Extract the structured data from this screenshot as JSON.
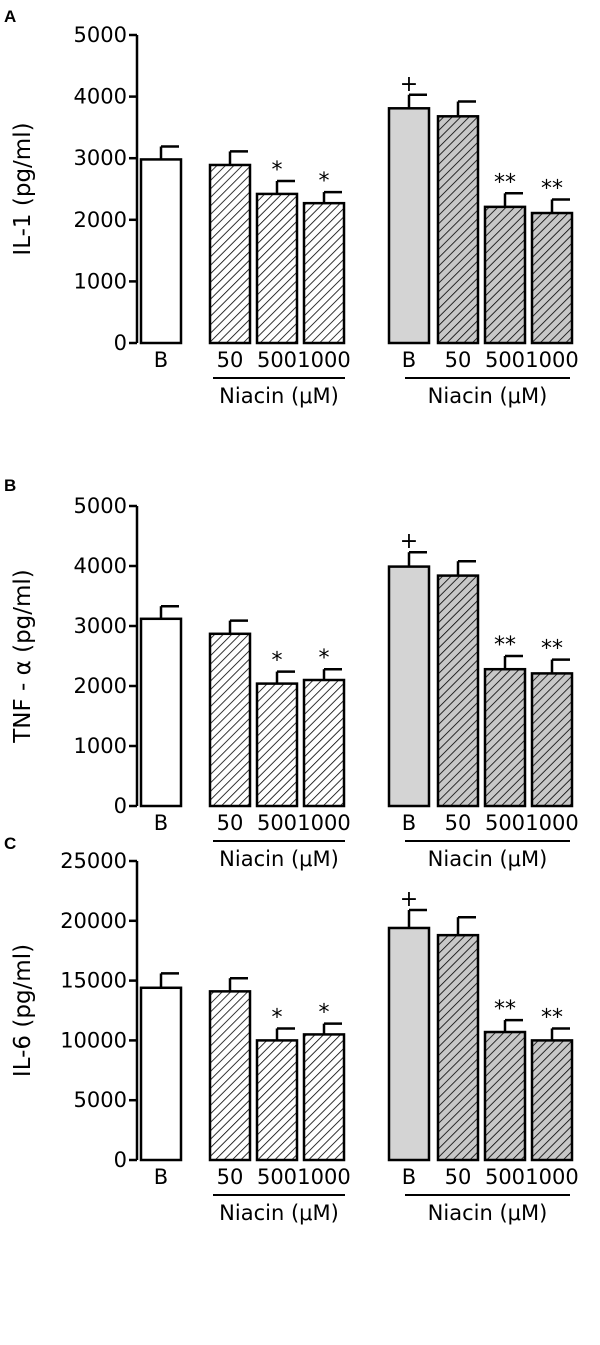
{
  "colors": {
    "control": "#ffffff",
    "lps": "#d4d4d4",
    "hatch_control": "#ffffff",
    "hatch_lps": "#c8c8c8",
    "ink": "#000000"
  },
  "chart_data": [
    {
      "type": "bar",
      "panel": "A",
      "ylabel": "IL-1 (pg/ml)",
      "ylim": [
        0,
        5000
      ],
      "yticks": [
        "0",
        "1000",
        "2000",
        "3000",
        "4000",
        "5000"
      ],
      "categories": [
        "B",
        "50",
        "500",
        "1000",
        "B",
        "50",
        "500",
        "1000"
      ],
      "groups": [
        "Niacin (μM)",
        "Niacin (μM)"
      ],
      "values": [
        2980,
        2890,
        2420,
        2270,
        3810,
        3680,
        2210,
        2110
      ],
      "errors": [
        210,
        220,
        210,
        180,
        220,
        240,
        220,
        220
      ],
      "fills": [
        "open",
        "hatch",
        "hatch",
        "hatch",
        "gray",
        "hatch_gray",
        "hatch_gray",
        "hatch_gray"
      ],
      "annotations": [
        "",
        "",
        "*",
        "*",
        "+",
        "",
        "**",
        "**"
      ]
    },
    {
      "type": "bar",
      "panel": "B",
      "ylabel": "TNF - α (pg/ml)",
      "ylim": [
        0,
        5000
      ],
      "yticks": [
        "0",
        "1000",
        "2000",
        "3000",
        "4000",
        "5000"
      ],
      "categories": [
        "B",
        "50",
        "500",
        "1000",
        "B",
        "50",
        "500",
        "1000"
      ],
      "groups": [
        "Niacin (μM)",
        "Niacin (μM)"
      ],
      "values": [
        3120,
        2870,
        2040,
        2100,
        3990,
        3840,
        2280,
        2210
      ],
      "errors": [
        210,
        220,
        200,
        180,
        240,
        240,
        220,
        230
      ],
      "fills": [
        "open",
        "hatch",
        "hatch",
        "hatch",
        "gray",
        "hatch_gray",
        "hatch_gray",
        "hatch_gray"
      ],
      "annotations": [
        "",
        "",
        "*",
        "*",
        "+",
        "",
        "**",
        "**"
      ]
    },
    {
      "type": "bar",
      "panel": "C",
      "ylabel": "IL-6 (pg/ml)",
      "ylim": [
        0,
        25000
      ],
      "yticks": [
        "0",
        "5000",
        "10000",
        "15000",
        "20000",
        "25000"
      ],
      "categories": [
        "B",
        "50",
        "500",
        "1000",
        "B",
        "50",
        "500",
        "1000"
      ],
      "groups": [
        "Niacin (μM)",
        "Niacin (μM)"
      ],
      "values": [
        14400,
        14100,
        10000,
        10500,
        19400,
        18800,
        10700,
        10000
      ],
      "errors": [
        1200,
        1100,
        1000,
        900,
        1500,
        1500,
        1000,
        1000
      ],
      "fills": [
        "open",
        "hatch",
        "hatch",
        "hatch",
        "gray",
        "hatch_gray",
        "hatch_gray",
        "hatch_gray"
      ],
      "annotations": [
        "",
        "",
        "*",
        "*",
        "+",
        "",
        "**",
        "**"
      ]
    }
  ]
}
